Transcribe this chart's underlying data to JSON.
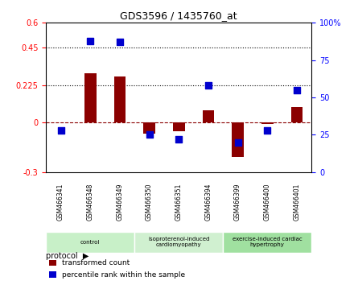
{
  "title": "GDS3596 / 1435760_at",
  "samples": [
    "GSM466341",
    "GSM466348",
    "GSM466349",
    "GSM466350",
    "GSM466351",
    "GSM466394",
    "GSM466399",
    "GSM466400",
    "GSM466401"
  ],
  "transformed_count": [
    0.0,
    0.295,
    0.275,
    -0.07,
    -0.055,
    0.07,
    -0.21,
    -0.01,
    0.09
  ],
  "percentile_rank": [
    28,
    88,
    87,
    25,
    22,
    58,
    20,
    28,
    55
  ],
  "bar_color": "#8B0000",
  "dot_color": "#0000CD",
  "ylim_left": [
    -0.3,
    0.6
  ],
  "ylim_right": [
    0,
    100
  ],
  "yticks_left": [
    -0.3,
    0.0,
    0.225,
    0.45,
    0.6
  ],
  "ytick_labels_left": [
    "-0.3",
    "0",
    "0.225",
    "0.45",
    "0.6"
  ],
  "yticks_right": [
    0,
    25,
    50,
    75,
    100
  ],
  "ytick_labels_right": [
    "0",
    "25",
    "50",
    "75",
    "100%"
  ],
  "hlines": [
    0.225,
    0.45
  ],
  "dashed_zero": 0.0,
  "groups": [
    {
      "label": "control",
      "start": 0,
      "end": 3,
      "color": "#c8f0c8"
    },
    {
      "label": "isoproterenol-induced\ncardiomyopathy",
      "start": 3,
      "end": 6,
      "color": "#d0f0d0"
    },
    {
      "label": "exercise-induced cardiac\nhypertrophy",
      "start": 6,
      "end": 9,
      "color": "#a0e0a0"
    }
  ],
  "legend_items": [
    {
      "label": "transformed count",
      "color": "#8B0000"
    },
    {
      "label": "percentile rank within the sample",
      "color": "#0000CD"
    }
  ],
  "protocol_label": "protocol",
  "background_color": "#ffffff",
  "plot_bg": "#ffffff",
  "grid_color": "#000000",
  "bar_width": 0.4,
  "dot_size": 40
}
